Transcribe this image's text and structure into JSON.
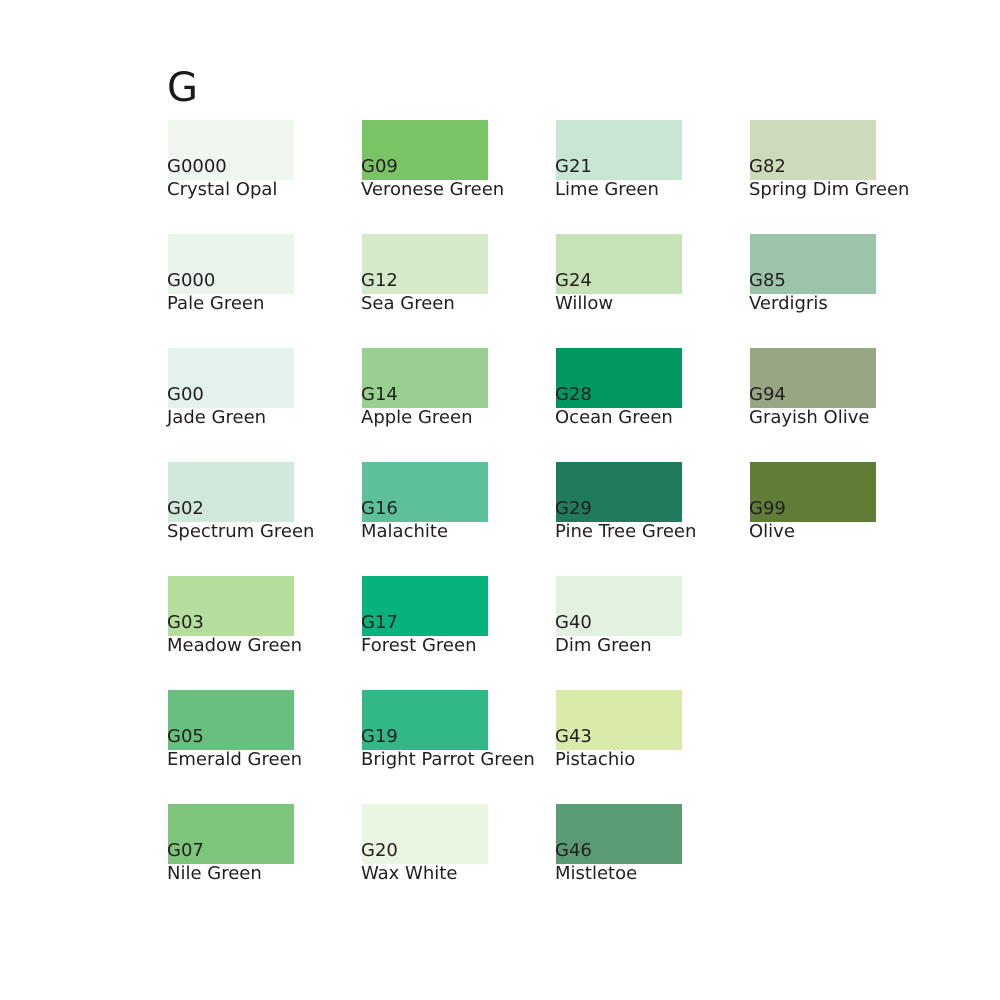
{
  "heading": "G",
  "swatches": [
    {
      "code": "G0000",
      "name": "Crystal Opal",
      "color": "#eef6ef"
    },
    {
      "code": "G000",
      "name": "Pale Green",
      "color": "#e9f5ec"
    },
    {
      "code": "G00",
      "name": "Jade Green",
      "color": "#e3f2ec"
    },
    {
      "code": "G02",
      "name": "Spectrum Green",
      "color": "#d0e9da"
    },
    {
      "code": "G03",
      "name": "Meadow Green",
      "color": "#b5dd9c"
    },
    {
      "code": "G05",
      "name": "Emerald Green",
      "color": "#67c07d"
    },
    {
      "code": "G07",
      "name": "Nile Green",
      "color": "#7ec47b"
    },
    {
      "code": "G09",
      "name": "Veronese Green",
      "color": "#7bc466"
    },
    {
      "code": "G12",
      "name": "Sea Green",
      "color": "#d4eac9"
    },
    {
      "code": "G14",
      "name": "Apple Green",
      "color": "#98d08f"
    },
    {
      "code": "G16",
      "name": "Malachite",
      "color": "#5ec09a"
    },
    {
      "code": "G17",
      "name": "Forest Green",
      "color": "#08b27c"
    },
    {
      "code": "G19",
      "name": "Bright Parrot Green",
      "color": "#31b886"
    },
    {
      "code": "G20",
      "name": "Wax White",
      "color": "#eaf5e2"
    },
    {
      "code": "G21",
      "name": "Lime Green",
      "color": "#c7e6d3"
    },
    {
      "code": "G24",
      "name": "Willow",
      "color": "#c6e3b8"
    },
    {
      "code": "G28",
      "name": "Ocean Green",
      "color": "#009761"
    },
    {
      "code": "G29",
      "name": "Pine Tree Green",
      "color": "#207a5c"
    },
    {
      "code": "G40",
      "name": "Dim Green",
      "color": "#e3f1e1"
    },
    {
      "code": "G43",
      "name": "Pistachio",
      "color": "#d9eaaa"
    },
    {
      "code": "G46",
      "name": "Mistletoe",
      "color": "#5a9b73"
    },
    {
      "code": "G82",
      "name": "Spring Dim Green",
      "color": "#cddbbb"
    },
    {
      "code": "G85",
      "name": "Verdigris",
      "color": "#9cc4ab"
    },
    {
      "code": "G94",
      "name": "Grayish Olive",
      "color": "#98a684"
    },
    {
      "code": "G99",
      "name": "Olive",
      "color": "#5f7d36"
    }
  ]
}
